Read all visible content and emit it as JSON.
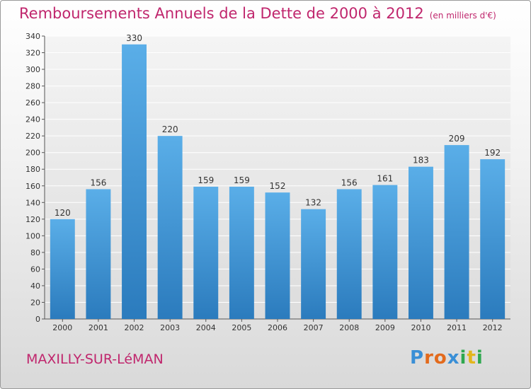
{
  "header": {
    "title": "Remboursements Annuels de la Dette de 2000 à 2012",
    "unit": "(en milliers d'€)"
  },
  "footer": {
    "commune": "MAXILLY-SUR-LéMAN",
    "logo": "Proxiti"
  },
  "colors": {
    "title": "#c0266d",
    "bar_top": "#5aaee8",
    "bar_bottom": "#2b7bbd",
    "logo_letters": [
      "#3a8fd6",
      "#e36a1c",
      "#e36a1c",
      "#3a8fd6",
      "#2fa84f",
      "#e3b61c",
      "#2fa84f"
    ]
  },
  "chart_data": {
    "type": "bar",
    "title": "Remboursements Annuels de la Dette de 2000 à 2012",
    "categories": [
      "2000",
      "2001",
      "2002",
      "2003",
      "2004",
      "2005",
      "2006",
      "2007",
      "2008",
      "2009",
      "2010",
      "2011",
      "2012"
    ],
    "values": [
      120,
      156,
      330,
      220,
      159,
      159,
      152,
      132,
      156,
      161,
      183,
      209,
      192
    ],
    "ylim": [
      0,
      340
    ],
    "yticks": [
      0,
      20,
      40,
      60,
      80,
      100,
      120,
      140,
      160,
      180,
      200,
      220,
      240,
      260,
      280,
      300,
      320,
      340
    ],
    "grid": true,
    "data_labels": true
  }
}
